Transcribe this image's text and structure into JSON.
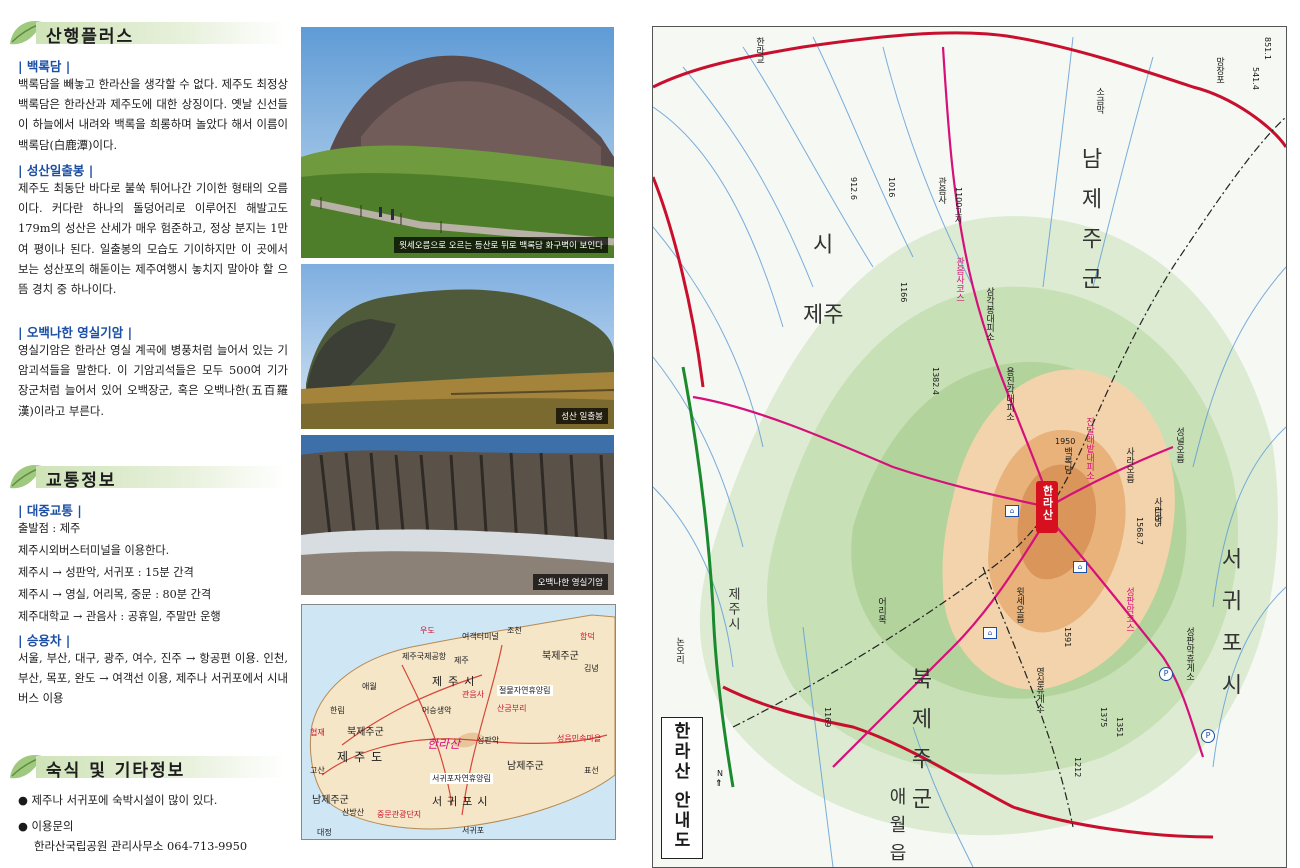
{
  "sections": {
    "plus": {
      "title": "산행플러스",
      "baengnokdam": {
        "heading": "| 백록담 |",
        "text": "백록담을 빼놓고 한라산을 생각할 수 없다. 제주도 최정상 백록담은 한라산과 제주도에 대한 상징이다. 옛날 신선들이 하늘에서 내려와 백록을 희롱하며 놀았다 해서 이름이 백록담(白鹿潭)이다."
      },
      "seongsan": {
        "heading": "| 성산일출봉 |",
        "text": "제주도 최동단 바다로 불쑥 튀어나간 기이한 형태의 오름이다. 커다란 하나의 돌덩어리로 이루어진 해발고도 179m의 성산은 산세가 매우 험준하고, 정상 분지는 1만여 평이나 된다. 일출봉의 모습도 기이하지만 이 곳에서 보는 성산포의 해돋이는 제주여행시 놓치지 말아야 할 으뜸 경치 중 하나이다."
      },
      "obaek": {
        "heading": "| 오백나한 영실기암 |",
        "text": "영실기암은 한라산 영실 계곡에 병풍처럼 늘어서 있는 기암괴석들을 말한다. 이 기암괴석들은 모두 500여 기가 장군처럼 늘어서 있어 오백장군, 혹은 오백나한(五百羅漢)이라고 부른다."
      }
    },
    "transport": {
      "title": "교통정보",
      "public_heading": "| 대중교통 |",
      "lines": [
        "출발점 : 제주",
        "제주시외버스터미널을 이용한다.",
        "제주시 → 성판악, 서귀포 : 15분 간격",
        "제주시 → 영실, 어리목, 중문 : 80분 간격",
        "제주대학교 → 관음사 : 공휴일, 주말만 운행"
      ],
      "car_heading": "| 승용차 |",
      "car_text": "서울, 부산, 대구, 광주, 여수, 진주 → 항공편 이용. 인천, 부산, 목포, 완도 → 여객선 이용, 제주나 서귀포에서 시내버스 이용"
    },
    "lodging": {
      "title": "숙식 및 기타정보",
      "bullets": [
        "● 제주나 서귀포에 숙박시설이 많이 있다.",
        "● 이용문의"
      ],
      "contact": "한라산국립공원 관리사무소 064-713-9950"
    }
  },
  "photos": [
    {
      "caption": "윗세오름으로 오르는 등산로 뒤로 백록담 화구벽이 보인다"
    },
    {
      "caption": "성산 일출봉"
    },
    {
      "caption": "오백나한 영실기암"
    }
  ],
  "inset_map": {
    "labels": {
      "jeju_city": "제주시",
      "bukjeju_e": "북제주군",
      "bukjeju_w": "북제주군",
      "jejudo": "제주도",
      "namjeju_e": "남제주군",
      "namjeju_w": "남제주군",
      "seogwipo": "서귀포시",
      "hallasan": "한라산",
      "jeju_pt": "제주",
      "seogwipo_pt": "서귀포",
      "airport": "제주국제공항",
      "terminal": "여객터미널",
      "forest_n": "절물자연휴양림",
      "forest_s": "서귀포자연휴양림",
      "seongpanak": "성판악",
      "eoseungsaeng": "어승생악",
      "jungmun": "중문관광단지",
      "udo": "우도",
      "seongsan": "성산포",
      "hyeopjae": "협재",
      "gosan": "고산",
      "daejeong": "대정",
      "moseulpo": "모슬포",
      "seongeup": "성읍민속마을",
      "pyoseon": "표선",
      "jocheon": "조천",
      "sanbangsan": "산방산",
      "aewol": "애월",
      "hanrim": "한림",
      "hamdeok": "함덕",
      "gimnyeong": "김녕",
      "gujwa": "구좌",
      "sanguburi": "산굼부리",
      "gwaneumsa": "관음사"
    }
  },
  "main_map": {
    "title": "한라산 안내도",
    "north": "N",
    "labels": {
      "hallasan": "한라산",
      "jeju": "제주",
      "si_n": "시",
      "namjeju_e": "남제주군",
      "seogwipo": "서귀포시",
      "bukjeju": "북제주군",
      "aewol": "애월읍",
      "jo_cheon_line": "제주시",
      "gwaneumsa": "관음사",
      "seongpanak": "성판악휴게소",
      "eorimok": "어리목",
      "yeongsil": "영실휴게소",
      "baengnokdam": "백록담",
      "witse": "윗세오름",
      "jindallae": "진달래밭대피소",
      "yongjingak": "용진각대피소",
      "samgakbong": "삼각봉대피소",
      "sara": "사라오름",
      "saraak": "사라악",
      "seongnuldeok": "성널오름",
      "nonori": "논오리",
      "mangjang": "망장포",
      "sogeumak": "소금막",
      "hallagyo": "한라교",
      "gwaneumsa_road": "관음사코스",
      "seongpan_road": "성판악코스",
      "e1": "1100고지",
      "e2": "1950",
      "e3": "1166",
      "e4": "1016",
      "e5": "1568.7",
      "e6": "1591",
      "e7": "1169",
      "e8": "1212",
      "e9": "1375",
      "e10": "1351",
      "e11": "1355",
      "e12": "1382.4",
      "e13": "912.6",
      "e14": "851.1",
      "e15": "541.4"
    }
  },
  "colors": {
    "heading_blue": "#1a4fa5",
    "road_red": "#c8102e",
    "trail_pink": "#d6107a",
    "highway_green": "#1b8a2e",
    "summit_orange": "#e8b27a",
    "leaf_green": "#8fbf6a"
  }
}
